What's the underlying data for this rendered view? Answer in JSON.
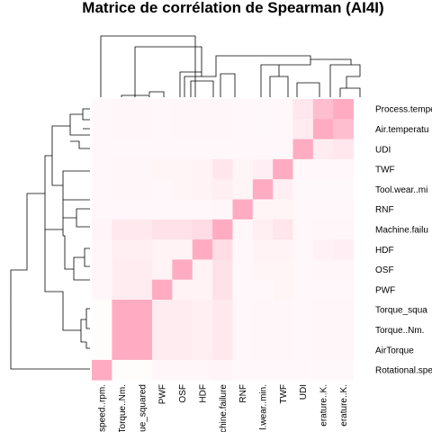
{
  "chart_data": {
    "type": "heatmap",
    "title": "Matrice de corrélation de Spearman (AI4I)",
    "row_labels": [
      "Process.tempe",
      "Air.temperatu",
      "UDI",
      "TWF",
      "Tool.wear..mi",
      "RNF",
      "Machine.failu",
      "HDF",
      "OSF",
      "PWF",
      "Torque_squa",
      "Torque..Nm.",
      "AirTorque",
      "Rotational.spe"
    ],
    "col_labels": [
      "speed..rpm.",
      "Torque..Nm.",
      "ue_squared",
      "PWF",
      "OSF",
      "HDF",
      "chine.failure",
      "RNF",
      "l.wear..min.",
      "TWF",
      "UDI",
      "erature..K.",
      "erature..K."
    ],
    "values": [
      [
        0.08,
        0.1,
        0.1,
        0.09,
        0.1,
        0.1,
        0.1,
        0.09,
        0.08,
        0.09,
        0.28,
        0.75,
        0.95
      ],
      [
        0.09,
        0.1,
        0.1,
        0.09,
        0.1,
        0.1,
        0.1,
        0.09,
        0.08,
        0.09,
        0.22,
        0.95,
        0.75
      ],
      [
        0.09,
        0.09,
        0.09,
        0.09,
        0.09,
        0.09,
        0.09,
        0.09,
        0.09,
        0.09,
        0.95,
        0.22,
        0.28
      ],
      [
        0.09,
        0.1,
        0.1,
        0.12,
        0.12,
        0.14,
        0.3,
        0.12,
        0.18,
        0.95,
        0.09,
        0.09,
        0.09
      ],
      [
        0.09,
        0.1,
        0.1,
        0.09,
        0.12,
        0.14,
        0.2,
        0.12,
        0.95,
        0.18,
        0.08,
        0.08,
        0.08
      ],
      [
        0.09,
        0.09,
        0.09,
        0.09,
        0.09,
        0.09,
        0.1,
        0.95,
        0.12,
        0.12,
        0.09,
        0.09,
        0.09
      ],
      [
        0.13,
        0.25,
        0.25,
        0.35,
        0.35,
        0.4,
        0.95,
        0.1,
        0.2,
        0.3,
        0.09,
        0.1,
        0.1
      ],
      [
        0.1,
        0.2,
        0.2,
        0.14,
        0.14,
        0.95,
        0.4,
        0.09,
        0.14,
        0.14,
        0.09,
        0.16,
        0.18
      ],
      [
        0.1,
        0.22,
        0.22,
        0.14,
        0.95,
        0.14,
        0.35,
        0.09,
        0.12,
        0.12,
        0.09,
        0.1,
        0.1
      ],
      [
        0.1,
        0.22,
        0.22,
        0.95,
        0.14,
        0.14,
        0.35,
        0.09,
        0.09,
        0.12,
        0.09,
        0.09,
        0.09
      ],
      [
        0.04,
        0.95,
        0.95,
        0.22,
        0.22,
        0.2,
        0.25,
        0.09,
        0.1,
        0.1,
        0.09,
        0.1,
        0.1
      ],
      [
        0.04,
        0.95,
        0.95,
        0.22,
        0.22,
        0.2,
        0.25,
        0.09,
        0.1,
        0.1,
        0.09,
        0.1,
        0.1
      ],
      [
        0.04,
        0.95,
        0.95,
        0.22,
        0.22,
        0.2,
        0.25,
        0.09,
        0.1,
        0.1,
        0.09,
        0.1,
        0.1
      ],
      [
        0.95,
        0.04,
        0.04,
        0.1,
        0.1,
        0.1,
        0.13,
        0.09,
        0.09,
        0.09,
        0.09,
        0.08,
        0.08
      ]
    ],
    "color_low": "#ffffff",
    "color_high": "#ffa8c0",
    "dendrograms": true
  }
}
